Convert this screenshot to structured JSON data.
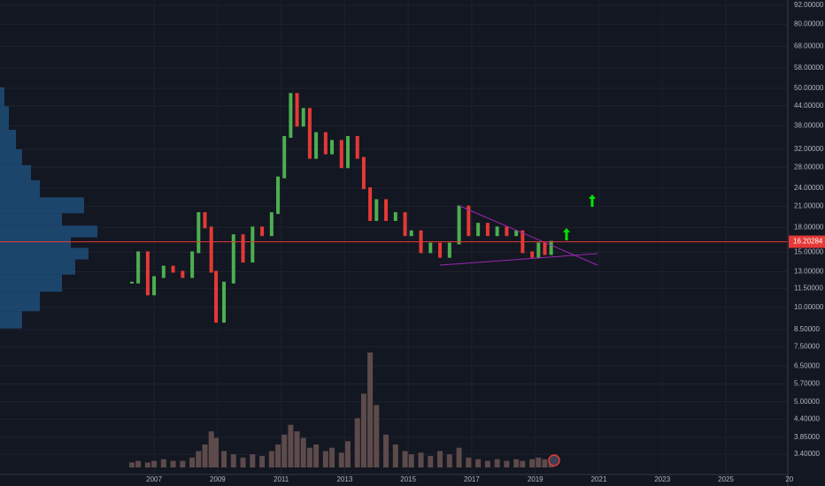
{
  "chart_data": {
    "type": "candlestick",
    "log_scale": true,
    "grid": true,
    "up_color": "#4caf50",
    "down_color": "#e53935",
    "x": [
      2006.3,
      2006.5,
      2006.8,
      2007.0,
      2007.3,
      2007.6,
      2007.9,
      2008.2,
      2008.4,
      2008.6,
      2008.8,
      2008.95,
      2009.2,
      2009.5,
      2009.8,
      2010.1,
      2010.4,
      2010.7,
      2010.9,
      2011.1,
      2011.3,
      2011.5,
      2011.7,
      2011.9,
      2012.1,
      2012.4,
      2012.6,
      2012.9,
      2013.1,
      2013.4,
      2013.6,
      2013.8,
      2014.0,
      2014.3,
      2014.6,
      2014.9,
      2015.1,
      2015.4,
      2015.7,
      2016.0,
      2016.3,
      2016.6,
      2016.9,
      2017.2,
      2017.5,
      2017.8,
      2018.1,
      2018.4,
      2018.6,
      2018.9,
      2019.1,
      2019.3,
      2019.5
    ],
    "values": [
      12,
      15,
      11,
      12.5,
      13.5,
      13,
      12.5,
      15,
      20,
      18,
      13,
      9,
      12,
      17,
      14,
      18,
      17,
      20,
      26,
      35,
      48,
      38,
      43,
      30,
      36,
      31,
      34,
      28,
      35,
      30,
      24,
      19,
      22,
      19,
      20,
      17,
      17.5,
      15,
      16,
      14.5,
      16,
      21,
      17,
      18.5,
      17,
      18,
      17,
      17.5,
      15,
      14.5,
      16,
      14.8,
      16.2
    ],
    "volume": {
      "color": "#5d4a4a",
      "values": [
        3,
        4,
        3,
        4,
        5,
        4,
        4,
        6,
        10,
        14,
        22,
        18,
        10,
        8,
        6,
        8,
        7,
        10,
        14,
        20,
        26,
        22,
        18,
        12,
        14,
        10,
        12,
        9,
        16,
        30,
        45,
        70,
        38,
        20,
        14,
        10,
        8,
        9,
        7,
        10,
        8,
        12,
        6,
        5,
        4,
        5,
        4,
        5,
        4,
        5,
        6,
        5,
        6
      ]
    },
    "volume_profile": {
      "color": "#1f4e79",
      "prices": [
        48,
        40,
        34,
        30,
        27,
        24,
        21,
        19,
        17.5,
        16,
        15,
        13.5,
        12,
        10.5,
        9
      ],
      "values": [
        5,
        10,
        18,
        25,
        35,
        45,
        95,
        70,
        110,
        80,
        100,
        85,
        70,
        45,
        25
      ]
    },
    "current_price": 16.20284,
    "current_price_label": "16.20284",
    "xlim": [
      2002.15,
      2027.2
    ],
    "xticks": [
      2007,
      2009,
      2011,
      2013,
      2015,
      2017,
      2019,
      2021,
      2023,
      2025,
      {
        "value": 2027,
        "label": "20"
      }
    ],
    "ylim": [
      2.93,
      95.7
    ],
    "yticks": [
      {
        "value": 92,
        "label": "92.00000"
      },
      {
        "value": 80,
        "label": "80.00000"
      },
      {
        "value": 68,
        "label": "68.00000"
      },
      {
        "value": 58,
        "label": "58.00000"
      },
      {
        "value": 50,
        "label": "50.00000"
      },
      {
        "value": 44,
        "label": "44.00000"
      },
      {
        "value": 38,
        "label": "38.00000"
      },
      {
        "value": 32,
        "label": "32.00000"
      },
      {
        "value": 28,
        "label": "28.00000"
      },
      {
        "value": 24,
        "label": "24.00000"
      },
      {
        "value": 21,
        "label": "21.00000"
      },
      {
        "value": 18,
        "label": "18.00000"
      },
      {
        "value": 15,
        "label": "15.00000"
      },
      {
        "value": 13,
        "label": "13.00000"
      },
      {
        "value": 11.5,
        "label": "11.50000"
      },
      {
        "value": 10,
        "label": "10.00000"
      },
      {
        "value": 8.5,
        "label": "8.50000"
      },
      {
        "value": 7.5,
        "label": "7.50000"
      },
      {
        "value": 6.5,
        "label": "6.50000"
      },
      {
        "value": 5.7,
        "label": "5.70000"
      },
      {
        "value": 5,
        "label": "5.00000"
      },
      {
        "value": 4.4,
        "label": "4.40000"
      },
      {
        "value": 3.85,
        "label": "3.85000"
      },
      {
        "value": 3.4,
        "label": "3.40000"
      }
    ]
  }
}
